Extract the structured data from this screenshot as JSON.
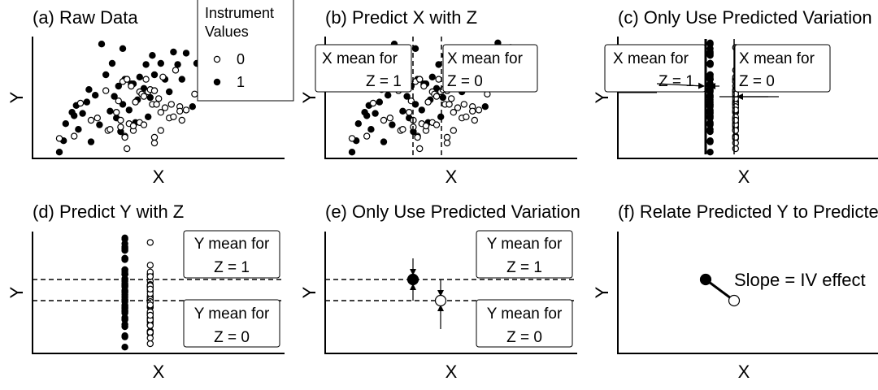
{
  "panels": [
    {
      "id": "a",
      "title": "(a) Raw Data",
      "xlabel": "X",
      "ylabel": "Y"
    },
    {
      "id": "b",
      "title": "(b) Predict X with Z",
      "xlabel": "X",
      "ylabel": "Y"
    },
    {
      "id": "c",
      "title": "(c) Only Use Predicted Variation",
      "xlabel": "X",
      "ylabel": "Y"
    },
    {
      "id": "d",
      "title": "(d) Predict Y with Z",
      "xlabel": "X",
      "ylabel": "Y"
    },
    {
      "id": "e",
      "title": "(e) Only Use Predicted Variation",
      "xlabel": "X",
      "ylabel": "Y"
    },
    {
      "id": "f",
      "title": "(f) Relate Predicted Y to Predicted X",
      "xlabel": "X",
      "ylabel": "Y"
    }
  ],
  "legend": {
    "title_line1": "Instrument",
    "title_line2": "Values",
    "items": [
      {
        "label": "0",
        "marker": "hollow-circle"
      },
      {
        "label": "1",
        "marker": "filled-circle"
      }
    ]
  },
  "annotations": {
    "b_z1": [
      "X mean for",
      "Z = 1"
    ],
    "b_z0": [
      "X mean for",
      "Z = 0"
    ],
    "c_z1": [
      "X mean for",
      "Z = 1"
    ],
    "c_z0": [
      "X mean for",
      "Z = 0"
    ],
    "d_z1": [
      "Y mean for",
      "Z = 1"
    ],
    "d_z0": [
      "Y mean for",
      "Z = 0"
    ],
    "e_z1": [
      "Y mean for",
      "Z = 1"
    ],
    "e_z0": [
      "Y mean for",
      "Z = 0"
    ],
    "f_slope": "Slope = IV effect"
  },
  "chart_data": {
    "type": "scatter",
    "xlim": [
      0,
      10
    ],
    "ylim": [
      0,
      10
    ],
    "group_means": {
      "z1": {
        "x": 3.6,
        "y": 5.4
      },
      "z0": {
        "x": 4.8,
        "y": 3.8
      }
    },
    "series": [
      {
        "name": "1",
        "marker": "filled",
        "points": [
          [
            0.5,
            0.2
          ],
          [
            0.7,
            1.2
          ],
          [
            0.8,
            2.7
          ],
          [
            1.1,
            3.7
          ],
          [
            1.2,
            3.4
          ],
          [
            1.3,
            4.3
          ],
          [
            1.4,
            2.2
          ],
          [
            1.6,
            3.6
          ],
          [
            1.8,
            4.6
          ],
          [
            1.9,
            5.7
          ],
          [
            2.0,
            1.1
          ],
          [
            2.2,
            5.2
          ],
          [
            2.4,
            2.6
          ],
          [
            2.5,
            9.7
          ],
          [
            2.7,
            7.0
          ],
          [
            2.9,
            3.8
          ],
          [
            3.0,
            8.0
          ],
          [
            3.1,
            5.1
          ],
          [
            3.2,
            3.2
          ],
          [
            3.3,
            6.0
          ],
          [
            3.4,
            2.0
          ],
          [
            3.5,
            4.4
          ],
          [
            3.5,
            9.3
          ],
          [
            3.6,
            6.6
          ],
          [
            3.7,
            6.6
          ],
          [
            3.8,
            3.9
          ],
          [
            3.9,
            6.2
          ],
          [
            4.0,
            6.2
          ],
          [
            4.1,
            2.8
          ],
          [
            4.2,
            4.8
          ],
          [
            4.3,
            6.8
          ],
          [
            4.5,
            5.8
          ],
          [
            4.6,
            7.9
          ],
          [
            4.7,
            3.3
          ],
          [
            4.8,
            5.0
          ],
          [
            4.9,
            8.7
          ],
          [
            5.0,
            5.6
          ],
          [
            5.0,
            7.0
          ],
          [
            5.3,
            8.0
          ],
          [
            5.5,
            6.6
          ],
          [
            5.7,
            5.5
          ],
          [
            5.9,
            9.0
          ],
          [
            6.1,
            7.9
          ],
          [
            6.3,
            6.6
          ],
          [
            6.5,
            8.9
          ],
          [
            6.8,
            4.2
          ],
          [
            7.0,
            8.0
          ],
          [
            7.2,
            8.8
          ],
          [
            7.4,
            9.8
          ]
        ]
      },
      {
        "name": "0",
        "marker": "hollow",
        "points": [
          [
            0.5,
            1.4
          ],
          [
            1.2,
            1.6
          ],
          [
            1.5,
            4.5
          ],
          [
            2.0,
            3.0
          ],
          [
            2.3,
            3.2
          ],
          [
            2.7,
            5.6
          ],
          [
            2.8,
            2.1
          ],
          [
            2.9,
            2.2
          ],
          [
            3.2,
            3.7
          ],
          [
            3.3,
            4.7
          ],
          [
            3.4,
            2.4
          ],
          [
            3.4,
            3.0
          ],
          [
            3.5,
            6.4
          ],
          [
            3.6,
            1.6
          ],
          [
            3.6,
            1.5
          ],
          [
            3.7,
            6.6
          ],
          [
            3.7,
            0.5
          ],
          [
            3.8,
            2.7
          ],
          [
            3.9,
            6.0
          ],
          [
            4.0,
            2.1
          ],
          [
            4.0,
            2.5
          ],
          [
            4.1,
            4.6
          ],
          [
            4.3,
            2.8
          ],
          [
            4.3,
            5.5
          ],
          [
            4.4,
            5.3
          ],
          [
            4.5,
            2.6
          ],
          [
            4.5,
            5.1
          ],
          [
            4.6,
            6.6
          ],
          [
            4.7,
            5.5
          ],
          [
            4.8,
            5.7
          ],
          [
            4.9,
            4.4
          ],
          [
            5.0,
            5.6
          ],
          [
            5.0,
            1.5
          ],
          [
            5.0,
            1.0
          ],
          [
            5.1,
            4.4
          ],
          [
            5.2,
            4.9
          ],
          [
            5.3,
            3.7
          ],
          [
            5.3,
            2.1
          ],
          [
            5.4,
            6.8
          ],
          [
            5.5,
            4.1
          ],
          [
            5.7,
            3.2
          ],
          [
            5.8,
            4.4
          ],
          [
            5.9,
            3.3
          ],
          [
            6.0,
            7.4
          ],
          [
            6.2,
            4.2
          ],
          [
            6.2,
            3.8
          ],
          [
            6.3,
            3.0
          ],
          [
            6.5,
            3.9
          ],
          [
            6.9,
            5.3
          ],
          [
            7.3,
            6.4
          ],
          [
            8.0,
            9.4
          ]
        ]
      }
    ]
  }
}
